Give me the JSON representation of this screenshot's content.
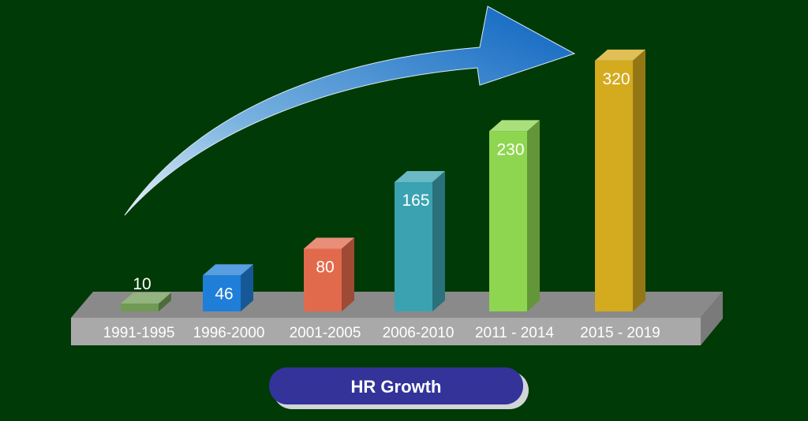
{
  "chart_data": {
    "type": "bar",
    "title": "HR Growth",
    "categories": [
      "1991-1995",
      "1996-2000",
      "2001-2005",
      "2006-2010",
      "2011 - 2014",
      "2015 - 2019"
    ],
    "values": [
      10,
      46,
      80,
      165,
      230,
      320
    ],
    "bar_colors": [
      "#6f9a54",
      "#1f7ed8",
      "#e26a4c",
      "#3aa2b0",
      "#8ed650",
      "#d4aa1e"
    ],
    "style": "3d-bars-on-platform",
    "trend_arrow": true
  },
  "colors": {
    "background": "#003a06",
    "platform": "#a7a7a7",
    "arrow": "#1e78c8",
    "title_pill": "#333399"
  }
}
